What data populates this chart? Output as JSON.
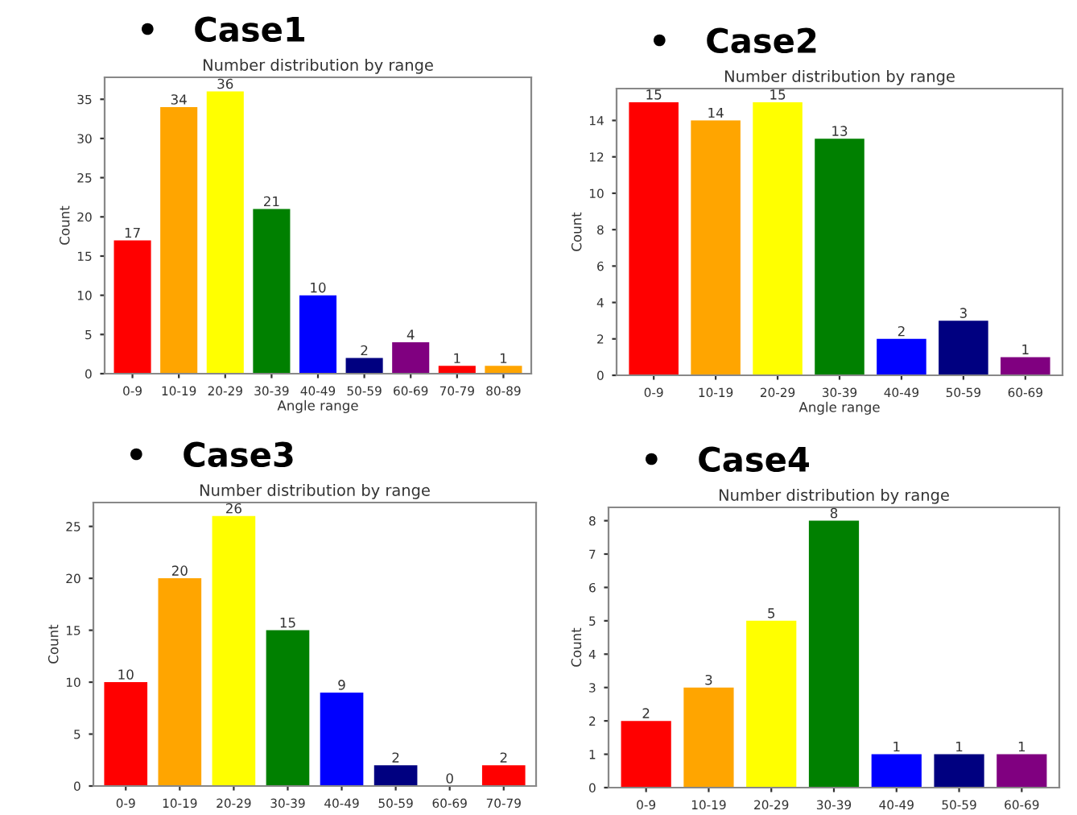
{
  "chart_data": [
    {
      "type": "bar",
      "title": "•   Case1",
      "subtitle": "Number distribution by range",
      "xlabel": "Angle range",
      "ylabel": "Count",
      "categories": [
        "0-9",
        "10-19",
        "20-29",
        "30-39",
        "40-49",
        "50-59",
        "60-69",
        "70-79",
        "80-89"
      ],
      "values": [
        17,
        34,
        36,
        21,
        10,
        2,
        4,
        1,
        1
      ],
      "colors": [
        "#ff0000",
        "#ffa500",
        "#ffff00",
        "#008000",
        "#0000ff",
        "#000080",
        "#800080",
        "#ff0000",
        "#ffa500"
      ],
      "ylim": [
        0,
        37.8
      ],
      "yticks": [
        0,
        5,
        10,
        15,
        20,
        25,
        30,
        35
      ],
      "data_labels": true,
      "grid": false,
      "legend": false
    },
    {
      "type": "bar",
      "title": "•   Case2",
      "subtitle": "Number distribution by range",
      "xlabel": "Angle range",
      "ylabel": "Count",
      "categories": [
        "0-9",
        "10-19",
        "20-29",
        "30-39",
        "40-49",
        "50-59",
        "60-69"
      ],
      "values": [
        15,
        14,
        15,
        13,
        2,
        3,
        1
      ],
      "colors": [
        "#ff0000",
        "#ffa500",
        "#ffff00",
        "#008000",
        "#0000ff",
        "#000080",
        "#800080"
      ],
      "ylim": [
        0,
        15.75
      ],
      "yticks": [
        0,
        2,
        4,
        6,
        8,
        10,
        12,
        14
      ],
      "data_labels": true,
      "grid": false,
      "legend": false
    },
    {
      "type": "bar",
      "title": "•   Case3",
      "subtitle": "Number distribution by range",
      "ylabel": "Count",
      "categories": [
        "0-9",
        "10-19",
        "20-29",
        "30-39",
        "40-49",
        "50-59",
        "60-69",
        "70-79"
      ],
      "values": [
        10,
        20,
        26,
        15,
        9,
        2,
        0,
        2
      ],
      "colors": [
        "#ff0000",
        "#ffa500",
        "#ffff00",
        "#008000",
        "#0000ff",
        "#000080",
        "#800080",
        "#ff0000"
      ],
      "ylim": [
        0,
        27.3
      ],
      "yticks": [
        0,
        5,
        10,
        15,
        20,
        25
      ],
      "data_labels": true,
      "grid": false,
      "legend": false
    },
    {
      "type": "bar",
      "title": "•   Case4",
      "subtitle": "Number distribution by range",
      "ylabel": "Count",
      "categories": [
        "0-9",
        "10-19",
        "20-29",
        "30-39",
        "40-49",
        "50-59",
        "60-69"
      ],
      "values": [
        2,
        3,
        5,
        8,
        1,
        1,
        1
      ],
      "colors": [
        "#ff0000",
        "#ffa500",
        "#ffff00",
        "#008000",
        "#0000ff",
        "#000080",
        "#800080"
      ],
      "ylim": [
        0,
        8.4
      ],
      "yticks": [
        0,
        1,
        2,
        3,
        4,
        5,
        6,
        7,
        8
      ],
      "data_labels": true,
      "grid": false,
      "legend": false
    }
  ]
}
